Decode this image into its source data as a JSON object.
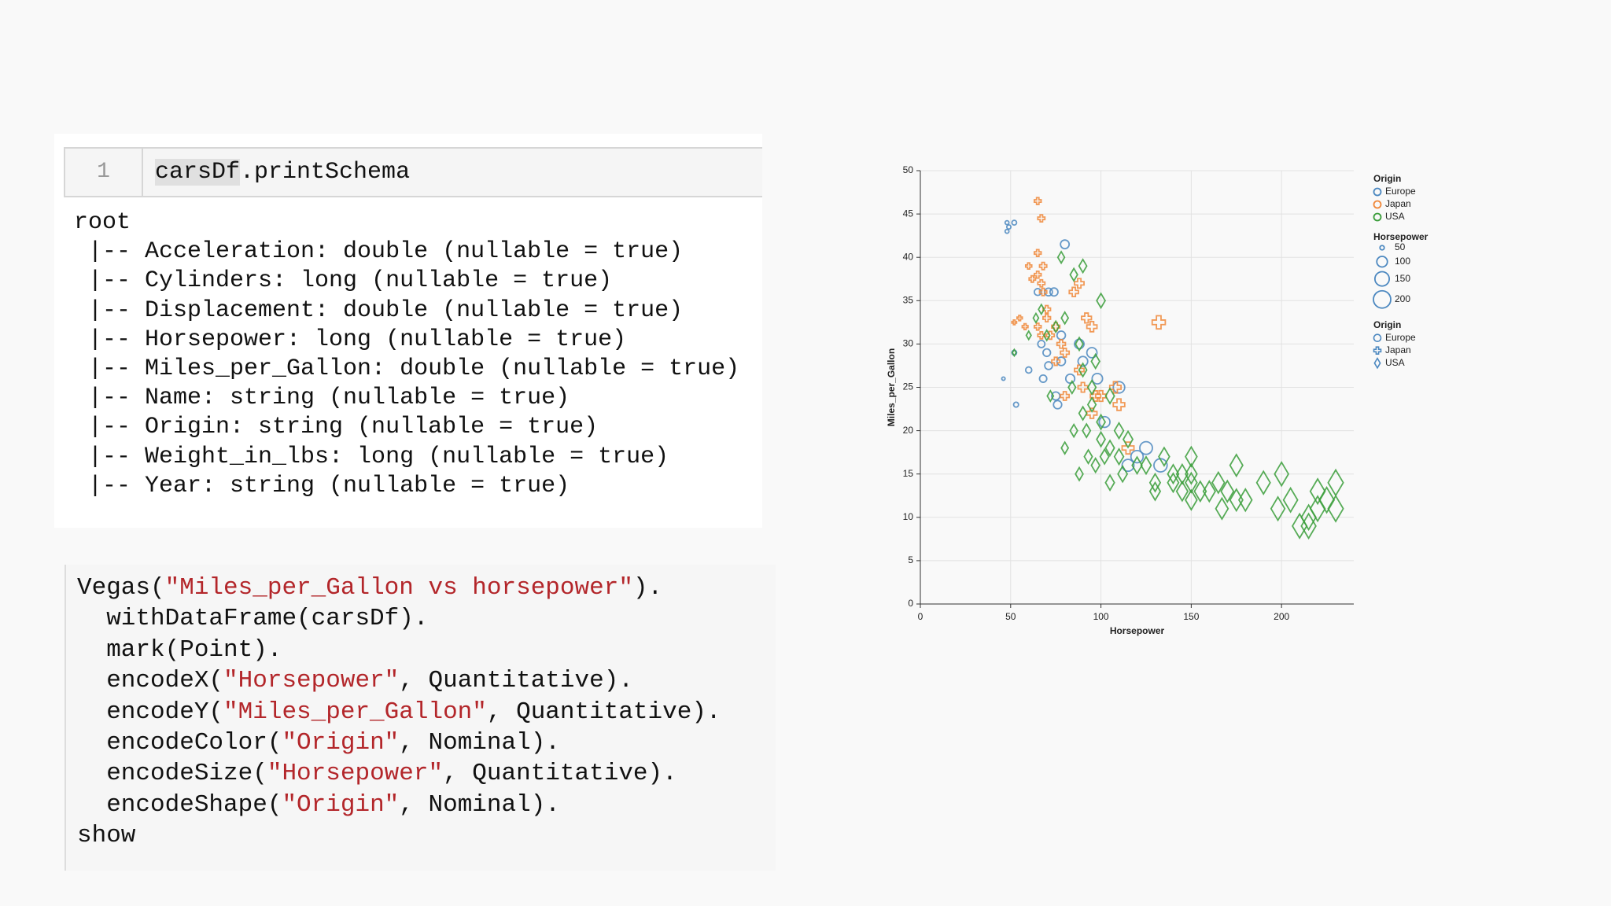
{
  "cell": {
    "line_number": "1",
    "code": [
      {
        "text": "carsDf",
        "kind": "highlight"
      },
      {
        "text": ".printSchema"
      }
    ]
  },
  "output": [
    "root",
    " |-- Acceleration: double (nullable = true)",
    " |-- Cylinders: long (nullable = true)",
    " |-- Displacement: double (nullable = true)",
    " |-- Horsepower: long (nullable = true)",
    " |-- Miles_per_Gallon: double (nullable = true)",
    " |-- Name: string (nullable = true)",
    " |-- Origin: string (nullable = true)",
    " |-- Weight_in_lbs: long (nullable = true)",
    " |-- Year: string (nullable = true)"
  ],
  "code_block": [
    [
      {
        "text": "Vegas("
      },
      {
        "text": "\"Miles_per_Gallon vs horsepower\"",
        "kind": "string"
      },
      {
        "text": ")."
      }
    ],
    [
      {
        "text": "  withDataFrame(carsDf)."
      }
    ],
    [
      {
        "text": "  mark(Point)."
      }
    ],
    [
      {
        "text": "  encodeX("
      },
      {
        "text": "\"Horsepower\"",
        "kind": "string"
      },
      {
        "text": ", Quantitative)."
      }
    ],
    [
      {
        "text": "  encodeY("
      },
      {
        "text": "\"Miles_per_Gallon\"",
        "kind": "string"
      },
      {
        "text": ", Quantitative)."
      }
    ],
    [
      {
        "text": "  encodeColor("
      },
      {
        "text": "\"Origin\"",
        "kind": "string"
      },
      {
        "text": ", Nominal)."
      }
    ],
    [
      {
        "text": "  encodeSize("
      },
      {
        "text": "\"Horsepower\"",
        "kind": "string"
      },
      {
        "text": ", Quantitative)."
      }
    ],
    [
      {
        "text": "  encodeShape("
      },
      {
        "text": "\"Origin\"",
        "kind": "string"
      },
      {
        "text": ", Nominal)."
      }
    ],
    [
      {
        "text": "show"
      }
    ]
  ],
  "chart_data": {
    "type": "scatter",
    "x_label": "Horsepower",
    "y_label": "Miles_per_Gallon",
    "xlim": [
      0,
      240
    ],
    "xticks": [
      0,
      50,
      100,
      150,
      200
    ],
    "ylim": [
      0,
      50
    ],
    "yticks": [
      0,
      5,
      10,
      15,
      20,
      25,
      30,
      35,
      40,
      45,
      50
    ],
    "grid": true,
    "color_legend_title": "Origin",
    "size_legend": {
      "title": "Horsepower",
      "values": [
        50,
        100,
        150,
        200
      ]
    },
    "shape_legend_title": "Origin",
    "series": [
      {
        "name": "Europe",
        "color": "#4c88c0",
        "shape": "circle",
        "x": [
          46,
          48,
          48,
          49,
          52,
          52,
          53,
          60,
          65,
          67,
          68,
          70,
          71,
          74,
          75,
          76,
          78,
          80,
          83,
          88,
          90,
          95,
          98,
          102,
          110,
          115,
          120,
          125,
          133,
          71,
          78
        ],
        "values": [
          26,
          44,
          43,
          43.5,
          44,
          29,
          23,
          27,
          36,
          30,
          26,
          29,
          27.5,
          36,
          24,
          23,
          31,
          41.5,
          26,
          30,
          28,
          29,
          26,
          21,
          25,
          16,
          17,
          18,
          16,
          36,
          28
        ]
      },
      {
        "name": "Japan",
        "color": "#f0883a",
        "shape": "cross",
        "x": [
          65,
          67,
          65,
          68,
          60,
          62,
          65,
          67,
          68,
          70,
          52,
          55,
          58,
          65,
          67,
          70,
          72,
          75,
          78,
          80,
          85,
          88,
          92,
          95,
          88,
          90,
          95,
          97,
          100,
          108,
          110,
          115,
          132,
          75,
          80
        ],
        "values": [
          46.5,
          44.5,
          40.5,
          39,
          39,
          37.5,
          38,
          37,
          36,
          33,
          32.5,
          33,
          32,
          32,
          31,
          34,
          31,
          32,
          30,
          29,
          36,
          37,
          33,
          32,
          27,
          25,
          22,
          24,
          24,
          25,
          23,
          18,
          32.5,
          28,
          24
        ]
      },
      {
        "name": "USA",
        "color": "#3a9d3a",
        "shape": "diamond",
        "x": [
          52,
          60,
          64,
          67,
          70,
          75,
          80,
          85,
          88,
          90,
          90,
          92,
          95,
          97,
          100,
          100,
          105,
          105,
          110,
          110,
          112,
          115,
          120,
          125,
          130,
          130,
          135,
          140,
          145,
          145,
          150,
          150,
          150,
          155,
          160,
          165,
          170,
          175,
          175,
          180,
          190,
          198,
          200,
          205,
          210,
          215,
          220,
          225,
          230,
          230,
          220,
          215,
          88,
          72,
          80,
          85,
          93,
          97,
          102,
          105,
          95,
          84,
          100,
          90,
          78,
          150,
          140,
          167
        ],
        "values": [
          29,
          31,
          33,
          34,
          31,
          32,
          33,
          38,
          30,
          27,
          22,
          20,
          25,
          28,
          21,
          19,
          18,
          24,
          20,
          17,
          15,
          19,
          16,
          16,
          14,
          13,
          17,
          14,
          15,
          13,
          14,
          12,
          15,
          13,
          13,
          14,
          13,
          12,
          16,
          12,
          14,
          11,
          15,
          12,
          9,
          10,
          11,
          12,
          14,
          11,
          13,
          9,
          15,
          24,
          18,
          20,
          17,
          16,
          17,
          14,
          23,
          25,
          35,
          39,
          40,
          17,
          15,
          11
        ]
      }
    ]
  }
}
